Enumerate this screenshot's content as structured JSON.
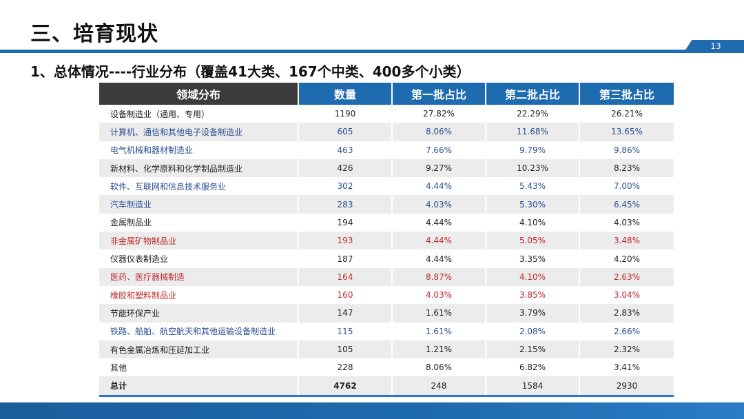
{
  "header": {
    "title": "三、培育现状",
    "page_number": "13"
  },
  "subtitle": "1、总体情况----行业分布（覆盖41大类、167个中类、400多个小类）",
  "table": {
    "columns": [
      "领域分布",
      "数量",
      "第一批占比",
      "第二批占比",
      "第三批占比"
    ],
    "rows": [
      {
        "name": "设备制造业（通用、专用）",
        "count": "1190",
        "b1": "27.82%",
        "b2": "22.29%",
        "b3": "26.21%",
        "color": "default"
      },
      {
        "name": "计算机、通信和其他电子设备制造业",
        "count": "605",
        "b1": "8.06%",
        "b2": "11.68%",
        "b3": "13.65%",
        "color": "blue"
      },
      {
        "name": "电气机械和器材制造业",
        "count": "463",
        "b1": "7.66%",
        "b2": "9.79%",
        "b3": "9.86%",
        "color": "blue"
      },
      {
        "name": "新材料、化学原料和化学制品制造业",
        "count": "426",
        "b1": "9.27%",
        "b2": "10.23%",
        "b3": "8.23%",
        "color": "default"
      },
      {
        "name": "软件、互联网和信息技术服务业",
        "count": "302",
        "b1": "4.44%",
        "b2": "5.43%",
        "b3": "7.00%",
        "color": "blue"
      },
      {
        "name": "汽车制造业",
        "count": "283",
        "b1": "4.03%",
        "b2": "5.30%",
        "b3": "6.45%",
        "color": "blue"
      },
      {
        "name": "金属制品业",
        "count": "194",
        "b1": "4.44%",
        "b2": "4.10%",
        "b3": "4.03%",
        "color": "default"
      },
      {
        "name": "非金属矿物制品业",
        "count": "193",
        "b1": "4.44%",
        "b2": "5.05%",
        "b3": "3.48%",
        "color": "red"
      },
      {
        "name": "仪器仪表制造业",
        "count": "187",
        "b1": "4.44%",
        "b2": "3.35%",
        "b3": "4.20%",
        "color": "default"
      },
      {
        "name": "医药、医疗器械制造",
        "count": "164",
        "b1": "8.87%",
        "b2": "4.10%",
        "b3": "2.63%",
        "color": "red"
      },
      {
        "name": "橡胶和塑料制品业",
        "count": "160",
        "b1": "4.03%",
        "b2": "3.85%",
        "b3": "3.04%",
        "color": "red"
      },
      {
        "name": "节能环保产业",
        "count": "147",
        "b1": "1.61%",
        "b2": "3.79%",
        "b3": "2.83%",
        "color": "default"
      },
      {
        "name": "铁路、船舶、航空航天和其他运输设备制造业",
        "count": "115",
        "b1": "1.61%",
        "b2": "2.08%",
        "b3": "2.66%",
        "color": "blue"
      },
      {
        "name": "有色金属冶炼和压延加工业",
        "count": "105",
        "b1": "1.21%",
        "b2": "2.15%",
        "b3": "2.32%",
        "color": "default"
      },
      {
        "name": "其他",
        "count": "228",
        "b1": "8.06%",
        "b2": "6.82%",
        "b3": "3.41%",
        "color": "default"
      }
    ],
    "total": {
      "name": "总计",
      "count": "4762",
      "b1": "248",
      "b2": "1584",
      "b3": "2930"
    }
  },
  "colors": {
    "accent_blue": "#1f6bb0",
    "header_dark": "#3b3b3b",
    "text_blue": "#2a4f94",
    "text_red": "#c0282d",
    "row_stripe": "#ececec"
  }
}
